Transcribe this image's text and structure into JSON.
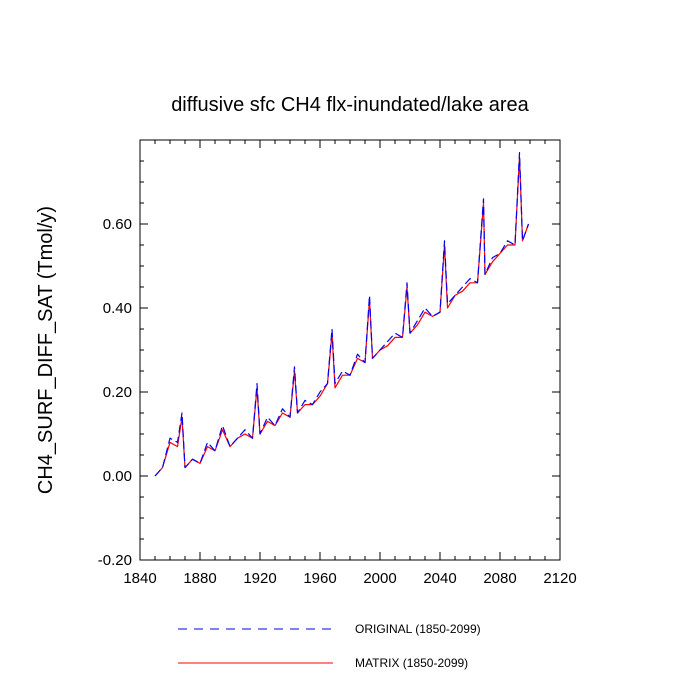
{
  "chart_data": {
    "type": "line",
    "title": "diffusive sfc CH4 flx-inundated/lake area",
    "xlabel": "",
    "ylabel": "CH4_SURF_DIFF_SAT  (Tmol/y)",
    "xlim": [
      1840,
      2120
    ],
    "ylim": [
      -0.2,
      0.8
    ],
    "xticks": [
      1840,
      1880,
      1920,
      1960,
      2000,
      2040,
      2080,
      2120
    ],
    "xtick_labels": [
      "1840",
      "1880",
      "1920",
      "1960",
      "2000",
      "2040",
      "2080",
      "2120"
    ],
    "yticks": [
      -0.2,
      0.0,
      0.2,
      0.4,
      0.6
    ],
    "ytick_labels": [
      "-0.20",
      "0.00",
      "0.20",
      "0.40",
      "0.60"
    ],
    "grid": false,
    "legend_position": "bottom",
    "x": [
      1850,
      1855,
      1860,
      1865,
      1868,
      1870,
      1875,
      1880,
      1885,
      1890,
      1895,
      1900,
      1905,
      1910,
      1915,
      1918,
      1920,
      1925,
      1930,
      1935,
      1940,
      1943,
      1945,
      1950,
      1955,
      1960,
      1965,
      1968,
      1970,
      1975,
      1980,
      1985,
      1990,
      1993,
      1995,
      2000,
      2005,
      2010,
      2015,
      2018,
      2020,
      2025,
      2030,
      2035,
      2040,
      2043,
      2045,
      2050,
      2055,
      2060,
      2065,
      2069,
      2070,
      2075,
      2080,
      2085,
      2090,
      2093,
      2095,
      2099
    ],
    "series": [
      {
        "name": "ORIGINAL (1850-2099)",
        "color": "#0000ff",
        "style": "dashed",
        "values": [
          0.0,
          0.02,
          0.09,
          0.08,
          0.15,
          0.02,
          0.04,
          0.03,
          0.08,
          0.06,
          0.12,
          0.07,
          0.09,
          0.11,
          0.09,
          0.22,
          0.1,
          0.14,
          0.12,
          0.16,
          0.14,
          0.26,
          0.15,
          0.18,
          0.17,
          0.2,
          0.22,
          0.35,
          0.22,
          0.25,
          0.24,
          0.29,
          0.27,
          0.43,
          0.28,
          0.3,
          0.32,
          0.34,
          0.33,
          0.46,
          0.34,
          0.37,
          0.4,
          0.38,
          0.39,
          0.56,
          0.41,
          0.43,
          0.45,
          0.47,
          0.46,
          0.66,
          0.48,
          0.52,
          0.53,
          0.56,
          0.55,
          0.77,
          0.56,
          0.6
        ]
      },
      {
        "name": "MATRIX (1850-2099)",
        "color": "#ff0000",
        "style": "solid",
        "values": [
          0.0,
          0.02,
          0.08,
          0.07,
          0.14,
          0.02,
          0.04,
          0.03,
          0.07,
          0.06,
          0.11,
          0.07,
          0.09,
          0.1,
          0.09,
          0.21,
          0.1,
          0.13,
          0.12,
          0.15,
          0.14,
          0.25,
          0.15,
          0.17,
          0.17,
          0.19,
          0.22,
          0.34,
          0.21,
          0.24,
          0.24,
          0.28,
          0.27,
          0.42,
          0.28,
          0.3,
          0.31,
          0.33,
          0.33,
          0.45,
          0.34,
          0.36,
          0.39,
          0.38,
          0.39,
          0.55,
          0.4,
          0.43,
          0.44,
          0.46,
          0.46,
          0.65,
          0.48,
          0.51,
          0.53,
          0.55,
          0.55,
          0.76,
          0.56,
          0.6
        ]
      }
    ]
  }
}
